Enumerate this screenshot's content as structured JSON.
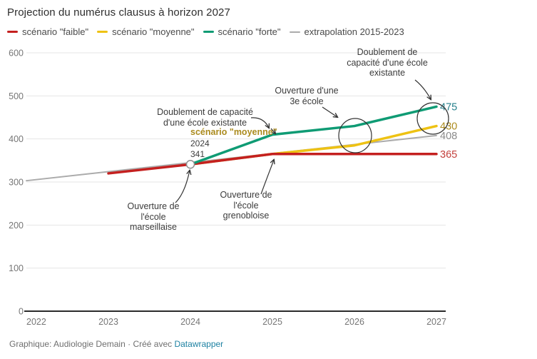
{
  "header": {
    "title": "Projection du numérus clausus à horizon 2027"
  },
  "footer": {
    "credit_prefix": "Graphique: Audiologie Demain · Créé avec ",
    "credit_link": "Datawrapper"
  },
  "annotations": {
    "doublement_left": {
      "lines": [
        "Doublement de capacité",
        "d'une école existante"
      ]
    },
    "scenario_moyenne_label": "scénario \"moyenne\"",
    "point_label": {
      "year": "2024",
      "value": "341"
    },
    "marseillaise": {
      "lines": [
        "Ouverture de",
        "l'école",
        "marseillaise"
      ]
    },
    "grenobloise": {
      "lines": [
        "Ouverture de",
        "l'école",
        "grenobloise"
      ]
    },
    "troisieme_ecole": {
      "lines": [
        "Ouverture d'une",
        "3e école"
      ]
    },
    "doublement_right": {
      "lines": [
        "Doublement de",
        "capacité d'une école",
        "existante"
      ]
    }
  },
  "chart_data": {
    "type": "line",
    "title": "Projection du numérus clausus à horizon 2027",
    "xlabel": "",
    "ylabel": "",
    "x_ticks": [
      "2022",
      "2023",
      "2024",
      "2025",
      "2026",
      "2027"
    ],
    "y_ticks": [
      0,
      100,
      200,
      300,
      400,
      500,
      600
    ],
    "ylim": [
      0,
      600
    ],
    "grid": true,
    "legend_position": "top",
    "series": [
      {
        "name": "scénario \"faible\"",
        "color": "#c4201f",
        "label_color": "#c4403c",
        "stroke_width": 3.5,
        "x": [
          2023,
          2024,
          2025,
          2026,
          2027
        ],
        "values": [
          320,
          341,
          365,
          365,
          365
        ],
        "end_label": "365"
      },
      {
        "name": "scénario \"moyenne\"",
        "color": "#eec213",
        "label_color": "#ad8c1f",
        "stroke_width": 3.5,
        "x": [
          2024,
          2025,
          2026,
          2027
        ],
        "values": [
          341,
          365,
          385,
          430
        ],
        "end_label": "430"
      },
      {
        "name": "scénario \"forte\"",
        "color": "#0f9b74",
        "label_color": "#26808c",
        "stroke_width": 3.5,
        "x": [
          2024,
          2025,
          2026,
          2027
        ],
        "values": [
          341,
          410,
          430,
          475
        ],
        "end_label": "475"
      },
      {
        "name": "extrapolation 2015-2023",
        "color": "#ababab",
        "label_color": "#8a8a8a",
        "stroke_width": 2,
        "x": [
          2022,
          2023,
          2024,
          2025,
          2026,
          2027
        ],
        "values": [
          303,
          324,
          345,
          366,
          387,
          408
        ],
        "end_label": "408"
      }
    ],
    "highlight_marker": {
      "x": 2024,
      "value": 341
    }
  }
}
